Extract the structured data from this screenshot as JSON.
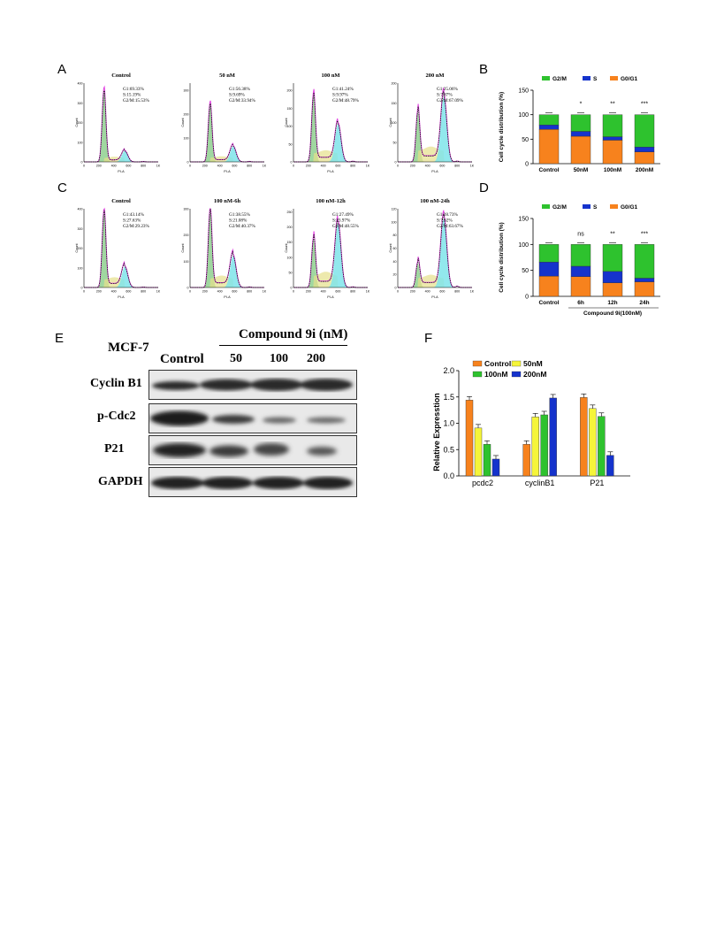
{
  "panel_letters": {
    "a": "A",
    "b": "B",
    "c": "C",
    "d": "D",
    "e": "E",
    "f": "F"
  },
  "flow_common": {
    "ylabel": "Count",
    "xlabel": "PI-A",
    "xticks": [
      "0",
      "200",
      "400",
      "600",
      "800",
      "1K"
    ]
  },
  "flow_row1": [
    {
      "title": "Control",
      "stats": [
        "G1:69.33%",
        "S:15.19%",
        "G2/M:15.53%"
      ],
      "yticks": [
        "0",
        "100",
        "200",
        "300",
        "400"
      ],
      "ymax": 400,
      "g1": 360,
      "g2": 55,
      "gm": 0.55,
      "sh": 20
    },
    {
      "title": "50 nM",
      "stats": [
        "G1:56.38%",
        "S:9.69%",
        "G2/M:33.94%"
      ],
      "yticks": [
        "0",
        "100",
        "200",
        "300"
      ],
      "ymax": 330,
      "g1": 240,
      "g2": 65,
      "gm": 0.58,
      "sh": 18
    },
    {
      "title": "100 nM",
      "stats": [
        "G1:41.24%",
        "S:9.97%",
        "G2/M:48.79%"
      ],
      "yticks": [
        "0",
        "50",
        "100",
        "150",
        "200"
      ],
      "ymax": 220,
      "g1": 185,
      "g2": 105,
      "gm": 0.6,
      "sh": 25
    },
    {
      "title": "200 nM",
      "stats": [
        "G1:25.06%",
        "S:7.87%",
        "G2/M:67.09%"
      ],
      "yticks": [
        "0",
        "50",
        "100",
        "150",
        "200"
      ],
      "ymax": 200,
      "g1": 128,
      "g2": 165,
      "gm": 0.62,
      "sh": 30
    }
  ],
  "flow_row2": [
    {
      "title": "Control",
      "stats": [
        "G1:43.14%",
        "S:27.63%",
        "G2/M:29.23%"
      ],
      "yticks": [
        "0",
        "100",
        "200",
        "300",
        "400"
      ],
      "ymax": 400,
      "g1": 380,
      "g2": 105,
      "gm": 0.55,
      "sh": 40
    },
    {
      "title": "100 nM-6h",
      "stats": [
        "G1:38.55%",
        "S:21.08%",
        "G2/M:40.37%"
      ],
      "yticks": [
        "0",
        "100",
        "200",
        "300"
      ],
      "ymax": 300,
      "g1": 290,
      "g2": 120,
      "gm": 0.58,
      "sh": 35
    },
    {
      "title": "100 nM-12h",
      "stats": [
        "G1:27.49%",
        "S:23.97%",
        "G2/M:48.55%"
      ],
      "yticks": [
        "0",
        "50",
        "100",
        "150",
        "200",
        "250"
      ],
      "ymax": 260,
      "g1": 160,
      "g2": 210,
      "gm": 0.6,
      "sh": 40
    },
    {
      "title": "100 nM-24h",
      "stats": [
        "G1:28.73%",
        "S:7.62%",
        "G2/M:63.67%"
      ],
      "yticks": [
        "0",
        "20",
        "40",
        "60",
        "80",
        "100",
        "120"
      ],
      "ymax": 120,
      "g1": 38,
      "g2": 105,
      "gm": 0.62,
      "sh": 15
    }
  ],
  "chart_data": [
    {
      "type": "bar",
      "stacked": true,
      "categories": [
        "Control",
        "50nM",
        "100nM",
        "200nM"
      ],
      "series": [
        {
          "name": "G0/G1",
          "color": "#f7821d",
          "values": [
            70,
            56,
            48,
            24
          ]
        },
        {
          "name": "S",
          "color": "#1533cc",
          "values": [
            9,
            10,
            7,
            10
          ]
        },
        {
          "name": "G2/M",
          "color": "#2ec22e",
          "values": [
            21,
            34,
            45,
            66
          ]
        }
      ],
      "ylabel": "Cell cycle distribution (%)",
      "ylim": [
        0,
        150
      ],
      "yticks": [
        "0",
        "50",
        "100",
        "150"
      ],
      "significance": [
        "",
        "*",
        "**",
        "***"
      ],
      "legend": "top"
    },
    {
      "type": "bar",
      "stacked": true,
      "categories": [
        "Control",
        "6h",
        "12h",
        "24h"
      ],
      "series": [
        {
          "name": "G0/G1",
          "color": "#f7821d",
          "values": [
            39,
            38,
            26,
            28
          ]
        },
        {
          "name": "S",
          "color": "#1533cc",
          "values": [
            27,
            20,
            22,
            7
          ]
        },
        {
          "name": "G2/M",
          "color": "#2ec22e",
          "values": [
            34,
            42,
            52,
            65
          ]
        }
      ],
      "ylabel": "Cell cycle distribution (%)",
      "ylim": [
        0,
        150
      ],
      "yticks": [
        "0",
        "50",
        "100",
        "150"
      ],
      "significance": [
        "",
        "ns",
        "**",
        "***"
      ],
      "group_label": "Compound 9i(100nM)",
      "legend": "top"
    },
    {
      "type": "bar",
      "categories": [
        "pcdc2",
        "cyclinB1",
        "P21"
      ],
      "series": [
        {
          "name": "Control",
          "color": "#f7821d",
          "values": [
            1.44,
            0.6,
            1.49
          ]
        },
        {
          "name": "50nM",
          "color": "#f5f53a",
          "values": [
            0.91,
            1.12,
            1.28
          ]
        },
        {
          "name": "100nM",
          "color": "#2ec22e",
          "values": [
            0.6,
            1.16,
            1.13
          ]
        },
        {
          "name": "200nM",
          "color": "#1533cc",
          "values": [
            0.32,
            1.48,
            0.39
          ]
        }
      ],
      "ylabel": "Relative Expresstion",
      "ylim": [
        0,
        2.0
      ],
      "yticks": [
        "0.0",
        "0.5",
        "1.0",
        "1.5",
        "2.0"
      ],
      "legend": "top-left"
    }
  ],
  "blot": {
    "cell_line": "MCF-7",
    "compound": "Compound 9i (nM)",
    "lanes": [
      "Control",
      "50",
      "100",
      "200"
    ],
    "rows": [
      "Cyclin B1",
      "p-Cdc2",
      "P21",
      "GAPDH"
    ]
  }
}
